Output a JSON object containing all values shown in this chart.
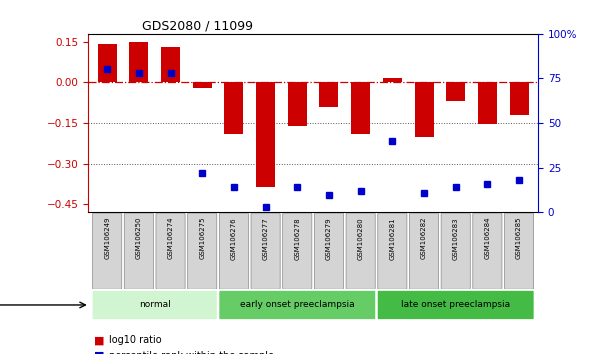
{
  "title": "GDS2080 / 11099",
  "samples": [
    "GSM106249",
    "GSM106250",
    "GSM106274",
    "GSM106275",
    "GSM106276",
    "GSM106277",
    "GSM106278",
    "GSM106279",
    "GSM106280",
    "GSM106281",
    "GSM106282",
    "GSM106283",
    "GSM106284",
    "GSM106285"
  ],
  "log10_ratio": [
    0.143,
    0.15,
    0.13,
    -0.02,
    -0.19,
    -0.385,
    -0.162,
    -0.09,
    -0.19,
    0.015,
    -0.2,
    -0.07,
    -0.155,
    -0.12
  ],
  "percentile_rank": [
    80,
    78,
    78,
    22,
    14,
    3,
    14,
    10,
    12,
    40,
    11,
    14,
    16,
    18
  ],
  "disease_groups": [
    {
      "label": "normal",
      "start": 0,
      "end": 4,
      "color": "#d0f5d0"
    },
    {
      "label": "early onset preeclampsia",
      "start": 4,
      "end": 9,
      "color": "#66cc66"
    },
    {
      "label": "late onset preeclampsia",
      "start": 9,
      "end": 14,
      "color": "#44bb44"
    }
  ],
  "bar_color": "#cc0000",
  "marker_color": "#0000cc",
  "ylim_left": [
    -0.48,
    0.18
  ],
  "ylim_right": [
    0,
    100
  ],
  "yticks_left": [
    -0.45,
    -0.3,
    -0.15,
    0,
    0.15
  ],
  "yticks_right": [
    0,
    25,
    50,
    75,
    100
  ],
  "hline_color": "#cc0000",
  "dotline_color": "#555555",
  "background_color": "#ffffff",
  "tick_label_bg": "#d4d4d4",
  "tick_label_border": "#888888"
}
